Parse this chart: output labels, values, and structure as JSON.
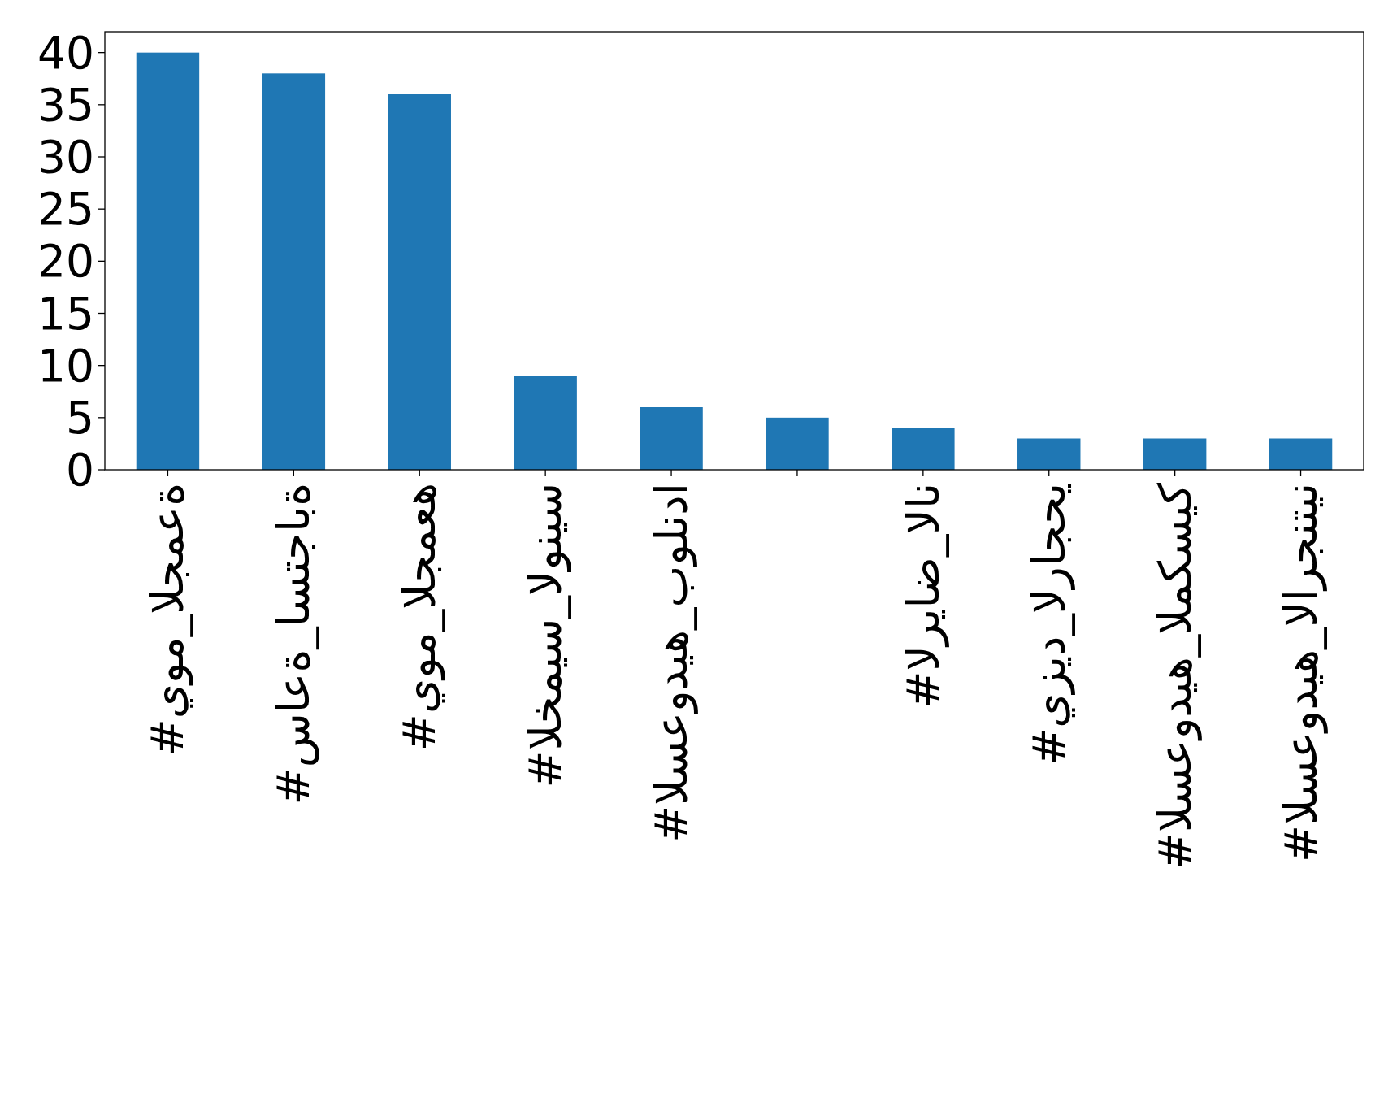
{
  "chart_data": {
    "type": "bar",
    "categories": [
      "#يوم_الجمعة",
      "#ساعة_استجابة",
      "#يوم_الجمعه",
      "#الخميس_الونيس",
      "#السعوديه_بولندا",
      null,
      "#الرياض_الان",
      "#يزيد_الراجحي",
      "#السعوديه_المكسيك",
      "#السعوديه_الارجنتين"
    ],
    "values": [
      40,
      38,
      36,
      9,
      6,
      5,
      4,
      3,
      3,
      3
    ],
    "color": "#1f77b4",
    "ylim": [
      0,
      42
    ],
    "yticks": [
      0,
      5,
      10,
      15,
      20,
      25,
      30,
      35,
      40
    ],
    "grid": false
  }
}
